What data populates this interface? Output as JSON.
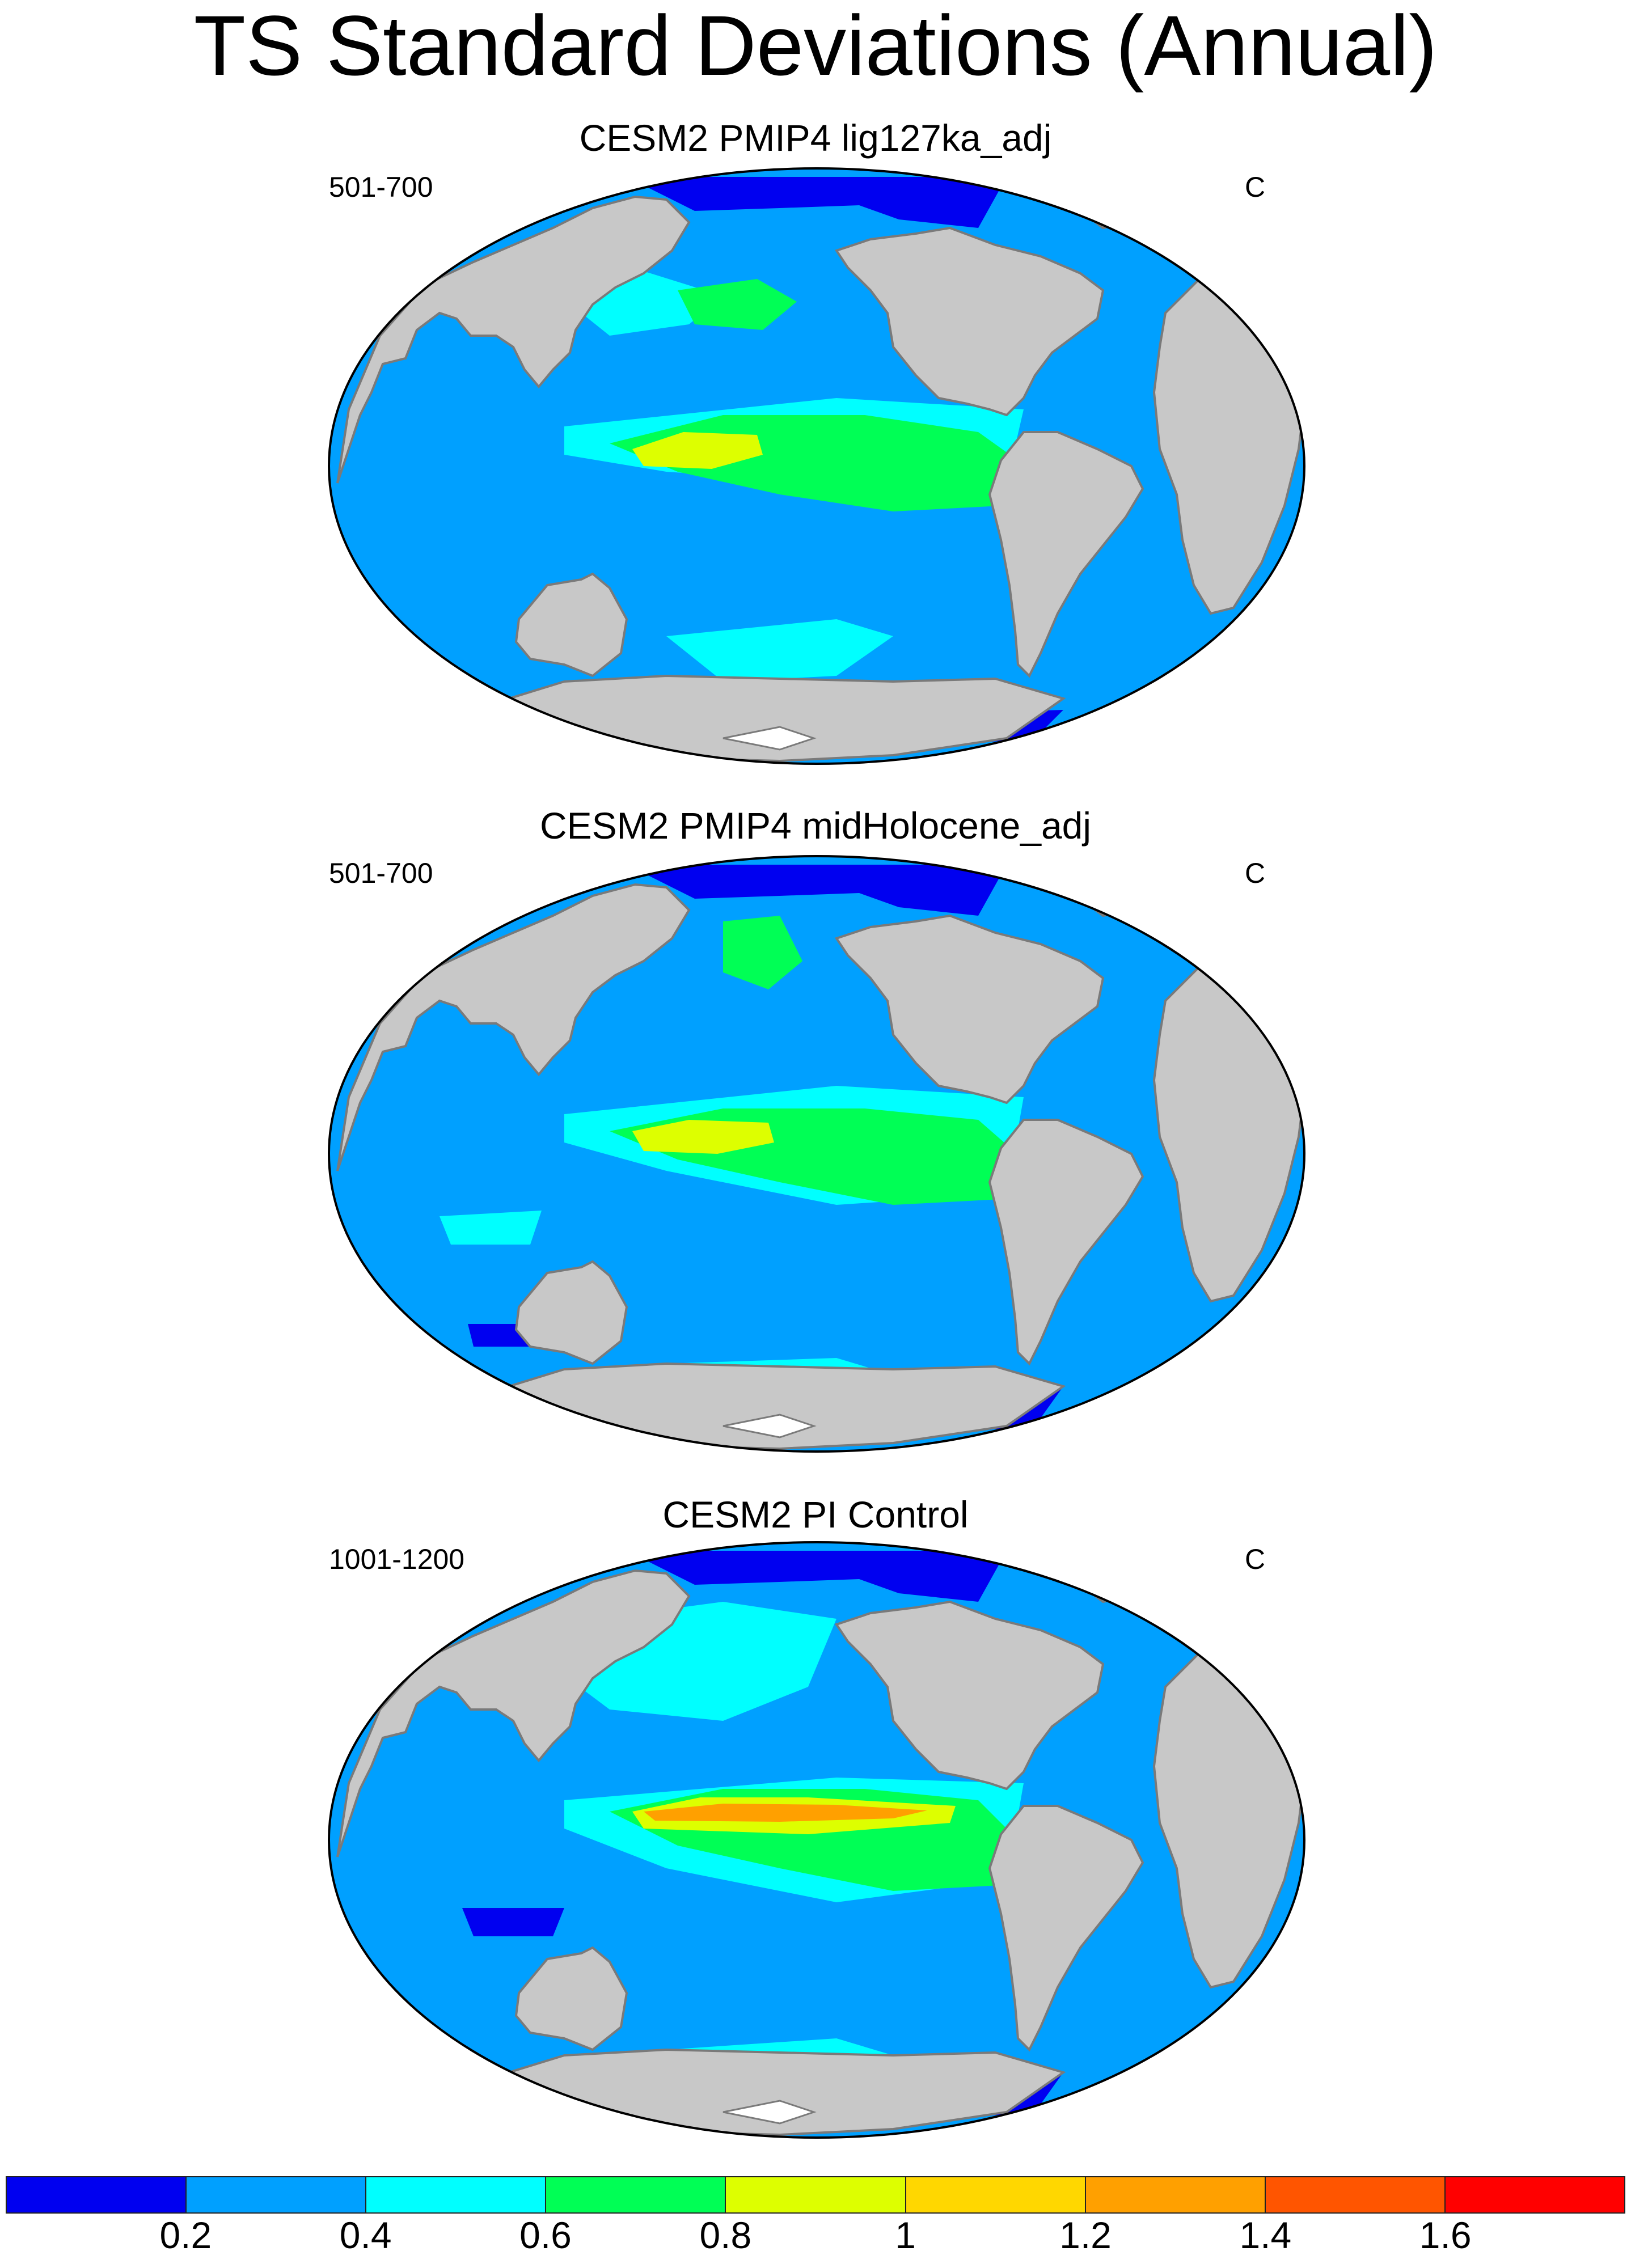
{
  "title": "TS Standard Deviations (Annual)",
  "panels": [
    {
      "title": "CESM2 PMIP4 lig127ka_adj",
      "left_label": "501-700",
      "right_label": "C"
    },
    {
      "title": "CESM2 PMIP4 midHolocene_adj",
      "left_label": "501-700",
      "right_label": "C"
    },
    {
      "title": "CESM2 PI Control",
      "left_label": "1001-1200",
      "right_label": "C"
    }
  ],
  "colorbar": {
    "colors": [
      "#0000f0",
      "#00a0ff",
      "#00ffff",
      "#00ff55",
      "#ddff00",
      "#ffd700",
      "#ffa000",
      "#ff5500",
      "#ff0000"
    ],
    "labels": [
      "0.2",
      "0.4",
      "0.6",
      "0.8",
      "1",
      "1.2",
      "1.4",
      "1.6"
    ]
  },
  "colors": {
    "land": "#c8c8c8",
    "ocean_base": "#00a0ff",
    "coast": "#7a7a7a",
    "ice_shelf": "#ffffff"
  }
}
